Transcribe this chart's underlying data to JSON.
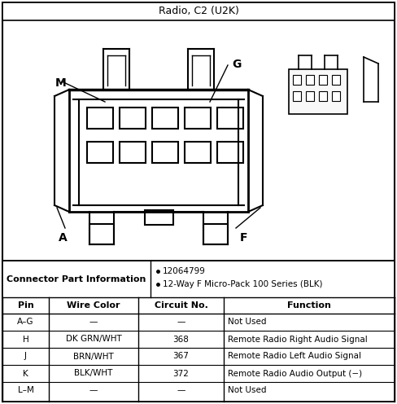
{
  "title": "Radio, C2 (U2K)",
  "bg_color": "#ffffff",
  "border_color": "#000000",
  "connector_info_label": "Connector Part Information",
  "bullet_points": [
    "12064799",
    "12-Way F Micro-Pack 100 Series (BLK)"
  ],
  "table_headers": [
    "Pin",
    "Wire Color",
    "Circuit No.",
    "Function"
  ],
  "table_rows": [
    [
      "A–G",
      "—",
      "—",
      "Not Used"
    ],
    [
      "H",
      "DK GRN/WHT",
      "368",
      "Remote Radio Right Audio Signal"
    ],
    [
      "J",
      "BRN/WHT",
      "367",
      "Remote Radio Left Audio Signal"
    ],
    [
      "K",
      "BLK/WHT",
      "372",
      "Remote Radio Audio Output (−)"
    ],
    [
      "L–M",
      "—",
      "—",
      "Not Used"
    ]
  ]
}
